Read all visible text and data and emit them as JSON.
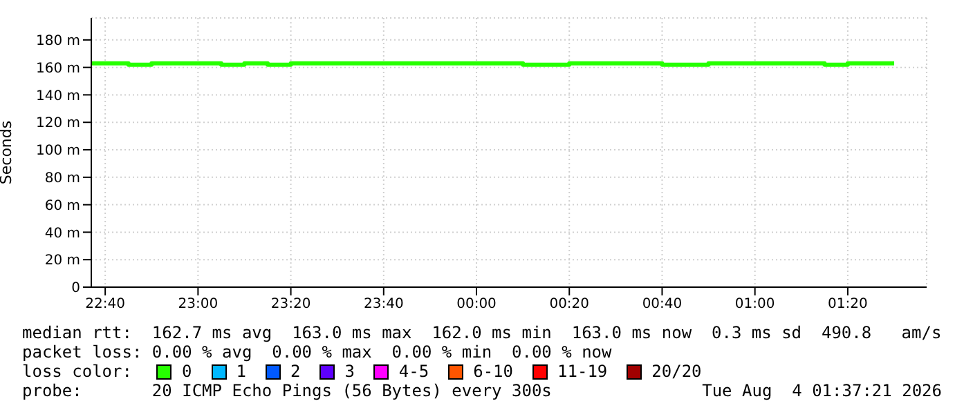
{
  "chart_data": {
    "type": "step",
    "ylabel": "Seconds",
    "x": [
      "2026-08-03T22:37",
      "2026-08-03T22:45",
      "2026-08-03T22:50",
      "2026-08-03T23:05",
      "2026-08-03T23:10",
      "2026-08-03T23:15",
      "2026-08-03T23:20",
      "2026-08-04T00:10",
      "2026-08-04T00:20",
      "2026-08-04T00:40",
      "2026-08-04T00:50",
      "2026-08-04T01:15",
      "2026-08-04T01:20",
      "2026-08-04T01:30"
    ],
    "series": [
      {
        "name": "0",
        "color": "#26ff00",
        "values": [
          163,
          162,
          163,
          162,
          163,
          162,
          163,
          162,
          163,
          162,
          163,
          162,
          163,
          163
        ]
      },
      {
        "name": "1",
        "color": "#00b8ff",
        "values": [
          null,
          null,
          null,
          null,
          null,
          null,
          null,
          null,
          null,
          null,
          null,
          null,
          null,
          null
        ]
      },
      {
        "name": "2",
        "color": "#0059ff",
        "values": [
          null,
          null,
          null,
          null,
          null,
          null,
          null,
          null,
          null,
          null,
          null,
          null,
          null,
          null
        ]
      },
      {
        "name": "3",
        "color": "#5e00ff",
        "values": [
          null,
          null,
          null,
          null,
          null,
          null,
          null,
          null,
          null,
          null,
          null,
          null,
          null,
          null
        ]
      },
      {
        "name": "4-5",
        "color": "#ff00ff",
        "values": [
          null,
          null,
          null,
          null,
          null,
          null,
          null,
          null,
          null,
          null,
          null,
          null,
          null,
          null
        ]
      },
      {
        "name": "6-10",
        "color": "#ff5500",
        "values": [
          null,
          null,
          null,
          null,
          null,
          null,
          null,
          null,
          null,
          null,
          null,
          null,
          null,
          null
        ]
      },
      {
        "name": "11-19",
        "color": "#ff0000",
        "values": [
          null,
          null,
          null,
          null,
          null,
          null,
          null,
          null,
          null,
          null,
          null,
          null,
          null,
          null
        ]
      },
      {
        "name": "20/20",
        "color": "#a10000",
        "values": [
          null,
          null,
          null,
          null,
          null,
          null,
          null,
          null,
          null,
          null,
          null,
          null,
          null,
          null
        ]
      }
    ],
    "xlim": [
      "2026-08-03T22:37",
      "2026-08-04T01:37"
    ],
    "xticks": [
      {
        "value": "2026-08-03T22:40",
        "label": "22:40"
      },
      {
        "value": "2026-08-03T23:00",
        "label": "23:00"
      },
      {
        "value": "2026-08-03T23:20",
        "label": "23:20"
      },
      {
        "value": "2026-08-03T23:40",
        "label": "23:40"
      },
      {
        "value": "2026-08-04T00:00",
        "label": "00:00"
      },
      {
        "value": "2026-08-04T00:20",
        "label": "00:20"
      },
      {
        "value": "2026-08-04T00:40",
        "label": "00:40"
      },
      {
        "value": "2026-08-04T01:00",
        "label": "01:00"
      },
      {
        "value": "2026-08-04T01:20",
        "label": "01:20"
      }
    ],
    "ylim": [
      0,
      196
    ],
    "yticks": [
      0,
      {
        "value": 20,
        "label": "20 m"
      },
      {
        "value": 40,
        "label": "40 m"
      },
      {
        "value": 60,
        "label": "60 m"
      },
      {
        "value": 80,
        "label": "80 m"
      },
      {
        "value": 100,
        "label": "100 m"
      },
      {
        "value": 120,
        "label": "120 m"
      },
      {
        "value": 140,
        "label": "140 m"
      },
      {
        "value": 160,
        "label": "160 m"
      },
      {
        "value": 180,
        "label": "180 m"
      }
    ],
    "grid": true,
    "legend": "bottom",
    "annotations": [
      "median rtt:  162.7 ms avg  163.0 ms max  162.0 ms min  163.0 ms now  0.3 ms sd  490.8   am/s",
      "packet loss: 0.00 % avg  0.00 % max  0.00 % min  0.00 % now",
      "loss color:",
      "probe:       20 ICMP Echo Pings (56 Bytes) every 300s",
      "Tue Aug  4 01:37:21 2026"
    ]
  }
}
